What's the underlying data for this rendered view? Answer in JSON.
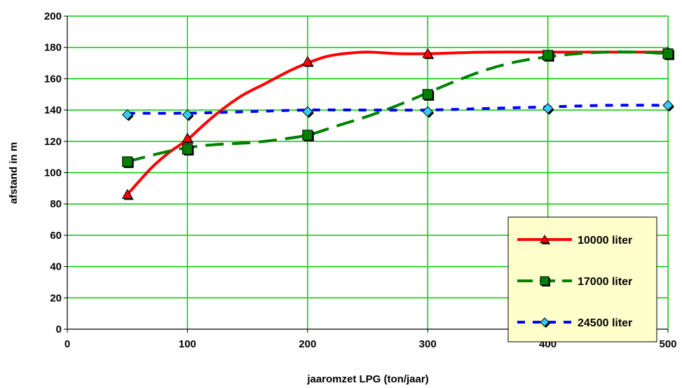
{
  "colors": {
    "grid": "#00cc00",
    "legend_bg": "#ffffcc",
    "series_10000": "#ff0000",
    "series_17000": "#008000",
    "series_24500": "#0000ff",
    "marker_24500": "#33ccff"
  },
  "chart_data": {
    "type": "line",
    "xlabel": "jaaromzet LPG (ton/jaar)",
    "ylabel": "afstand in m",
    "xlim": [
      0,
      500
    ],
    "ylim": [
      0,
      200
    ],
    "x_ticks": [
      0,
      100,
      200,
      300,
      400,
      500
    ],
    "y_ticks": [
      0,
      20,
      40,
      60,
      80,
      100,
      120,
      140,
      160,
      180,
      200
    ],
    "grid": true,
    "legend_position": "bottom-right",
    "series": [
      {
        "name": "10000 liter",
        "marker": "triangle",
        "line_style": "solid",
        "points": [
          [
            50,
            86
          ],
          [
            100,
            122
          ],
          [
            200,
            171
          ],
          [
            300,
            176
          ],
          [
            400,
            175
          ],
          [
            500,
            177
          ]
        ],
        "curve": [
          [
            50,
            86
          ],
          [
            70,
            103
          ],
          [
            85,
            113
          ],
          [
            100,
            121
          ],
          [
            110,
            128
          ],
          [
            125,
            138
          ],
          [
            145,
            149
          ],
          [
            165,
            157
          ],
          [
            185,
            165
          ],
          [
            200,
            170
          ],
          [
            215,
            174
          ],
          [
            230,
            176
          ],
          [
            250,
            177
          ],
          [
            275,
            176
          ],
          [
            300,
            176
          ],
          [
            350,
            177
          ],
          [
            400,
            177
          ],
          [
            450,
            177
          ],
          [
            500,
            177
          ]
        ]
      },
      {
        "name": "17000 liter",
        "marker": "square",
        "line_style": "dashed",
        "points": [
          [
            50,
            107
          ],
          [
            100,
            115
          ],
          [
            200,
            124
          ],
          [
            300,
            150
          ],
          [
            400,
            175
          ],
          [
            500,
            176
          ]
        ],
        "curve": [
          [
            50,
            107
          ],
          [
            75,
            112
          ],
          [
            100,
            116
          ],
          [
            125,
            118
          ],
          [
            150,
            119
          ],
          [
            175,
            121
          ],
          [
            200,
            124
          ],
          [
            225,
            130
          ],
          [
            250,
            136
          ],
          [
            275,
            143
          ],
          [
            300,
            151
          ],
          [
            325,
            159
          ],
          [
            350,
            166
          ],
          [
            375,
            171
          ],
          [
            400,
            174
          ],
          [
            425,
            176
          ],
          [
            450,
            177
          ],
          [
            475,
            177
          ],
          [
            500,
            176
          ]
        ]
      },
      {
        "name": "24500 liter",
        "marker": "diamond",
        "line_style": "dotted",
        "points": [
          [
            50,
            137
          ],
          [
            100,
            137
          ],
          [
            200,
            139
          ],
          [
            300,
            139
          ],
          [
            400,
            141
          ],
          [
            500,
            143
          ]
        ],
        "curve": [
          [
            50,
            138
          ],
          [
            100,
            138
          ],
          [
            150,
            139
          ],
          [
            200,
            140
          ],
          [
            250,
            140
          ],
          [
            300,
            140
          ],
          [
            350,
            141
          ],
          [
            400,
            142
          ],
          [
            450,
            143
          ],
          [
            500,
            143
          ]
        ]
      }
    ]
  }
}
